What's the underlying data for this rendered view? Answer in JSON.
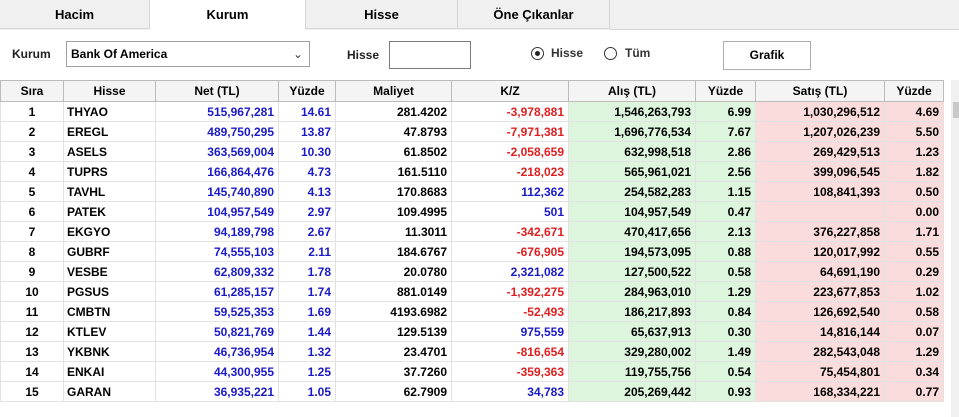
{
  "tabs": [
    {
      "label": "Hacim",
      "active": false
    },
    {
      "label": "Kurum",
      "active": true
    },
    {
      "label": "Hisse",
      "active": false
    },
    {
      "label": "Öne Çıkanlar",
      "active": false
    }
  ],
  "toolbar": {
    "kurum_label": "Kurum",
    "kurum_value": "Bank Of America",
    "hisse_label": "Hisse",
    "hisse_value": "",
    "radio_hisse": "Hisse",
    "radio_tum": "Tüm",
    "radio_selected": "Hisse",
    "grafik_button": "Grafik"
  },
  "columns": [
    "Sıra",
    "Hisse",
    "Net (TL)",
    "Yüzde",
    "Maliyet",
    "K/Z",
    "Alış (TL)",
    "Yüzde",
    "Satış (TL)",
    "Yüzde"
  ],
  "rows": [
    {
      "sira": "1",
      "hisse": "THYAO",
      "net": "515,967,281",
      "yuzde": "14.61",
      "maliyet": "281.4202",
      "kz": "-3,978,881",
      "alis": "1,546,263,793",
      "alis_yuzde": "6.99",
      "satis": "1,030,296,512",
      "satis_yuzde": "4.69"
    },
    {
      "sira": "2",
      "hisse": "EREGL",
      "net": "489,750,295",
      "yuzde": "13.87",
      "maliyet": "47.8793",
      "kz": "-7,971,381",
      "alis": "1,696,776,534",
      "alis_yuzde": "7.67",
      "satis": "1,207,026,239",
      "satis_yuzde": "5.50"
    },
    {
      "sira": "3",
      "hisse": "ASELS",
      "net": "363,569,004",
      "yuzde": "10.30",
      "maliyet": "61.8502",
      "kz": "-2,058,659",
      "alis": "632,998,518",
      "alis_yuzde": "2.86",
      "satis": "269,429,513",
      "satis_yuzde": "1.23"
    },
    {
      "sira": "4",
      "hisse": "TUPRS",
      "net": "166,864,476",
      "yuzde": "4.73",
      "maliyet": "161.5110",
      "kz": "-218,023",
      "alis": "565,961,021",
      "alis_yuzde": "2.56",
      "satis": "399,096,545",
      "satis_yuzde": "1.82"
    },
    {
      "sira": "5",
      "hisse": "TAVHL",
      "net": "145,740,890",
      "yuzde": "4.13",
      "maliyet": "170.8683",
      "kz": "112,362",
      "alis": "254,582,283",
      "alis_yuzde": "1.15",
      "satis": "108,841,393",
      "satis_yuzde": "0.50"
    },
    {
      "sira": "6",
      "hisse": "PATEK",
      "net": "104,957,549",
      "yuzde": "2.97",
      "maliyet": "109.4995",
      "kz": "501",
      "alis": "104,957,549",
      "alis_yuzde": "0.47",
      "satis": "",
      "satis_yuzde": "0.00"
    },
    {
      "sira": "7",
      "hisse": "EKGYO",
      "net": "94,189,798",
      "yuzde": "2.67",
      "maliyet": "11.3011",
      "kz": "-342,671",
      "alis": "470,417,656",
      "alis_yuzde": "2.13",
      "satis": "376,227,858",
      "satis_yuzde": "1.71"
    },
    {
      "sira": "8",
      "hisse": "GUBRF",
      "net": "74,555,103",
      "yuzde": "2.11",
      "maliyet": "184.6767",
      "kz": "-676,905",
      "alis": "194,573,095",
      "alis_yuzde": "0.88",
      "satis": "120,017,992",
      "satis_yuzde": "0.55"
    },
    {
      "sira": "9",
      "hisse": "VESBE",
      "net": "62,809,332",
      "yuzde": "1.78",
      "maliyet": "20.0780",
      "kz": "2,321,082",
      "alis": "127,500,522",
      "alis_yuzde": "0.58",
      "satis": "64,691,190",
      "satis_yuzde": "0.29"
    },
    {
      "sira": "10",
      "hisse": "PGSUS",
      "net": "61,285,157",
      "yuzde": "1.74",
      "maliyet": "881.0149",
      "kz": "-1,392,275",
      "alis": "284,963,010",
      "alis_yuzde": "1.29",
      "satis": "223,677,853",
      "satis_yuzde": "1.02"
    },
    {
      "sira": "11",
      "hisse": "CMBTN",
      "net": "59,525,353",
      "yuzde": "1.69",
      "maliyet": "4193.6982",
      "kz": "-52,493",
      "alis": "186,217,893",
      "alis_yuzde": "0.84",
      "satis": "126,692,540",
      "satis_yuzde": "0.58"
    },
    {
      "sira": "12",
      "hisse": "KTLEV",
      "net": "50,821,769",
      "yuzde": "1.44",
      "maliyet": "129.5139",
      "kz": "975,559",
      "alis": "65,637,913",
      "alis_yuzde": "0.30",
      "satis": "14,816,144",
      "satis_yuzde": "0.07"
    },
    {
      "sira": "13",
      "hisse": "YKBNK",
      "net": "46,736,954",
      "yuzde": "1.32",
      "maliyet": "23.4701",
      "kz": "-816,654",
      "alis": "329,280,002",
      "alis_yuzde": "1.49",
      "satis": "282,543,048",
      "satis_yuzde": "1.29"
    },
    {
      "sira": "14",
      "hisse": "ENKAI",
      "net": "44,300,955",
      "yuzde": "1.25",
      "maliyet": "37.7260",
      "kz": "-359,363",
      "alis": "119,755,756",
      "alis_yuzde": "0.54",
      "satis": "75,454,801",
      "satis_yuzde": "0.34"
    },
    {
      "sira": "15",
      "hisse": "GARAN",
      "net": "36,935,221",
      "yuzde": "1.05",
      "maliyet": "62.7909",
      "kz": "34,783",
      "alis": "205,269,442",
      "alis_yuzde": "0.93",
      "satis": "168,334,221",
      "satis_yuzde": "0.77"
    }
  ],
  "colors": {
    "buy_bg": "#ddf5dd",
    "sell_bg": "#fadcdc",
    "negative": "#e01e1e",
    "positive": "#1a1ac8"
  }
}
